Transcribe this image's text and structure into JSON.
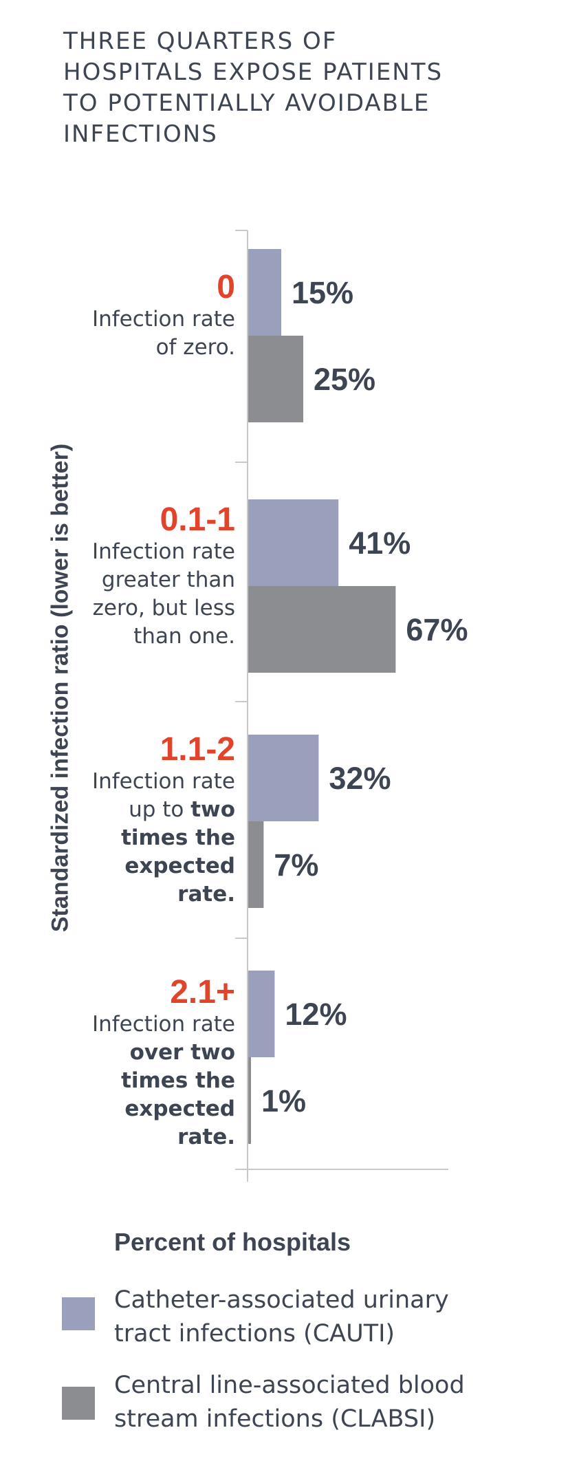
{
  "title": {
    "line1": "THREE QUARTERS OF",
    "line2": "HOSPITALS EXPOSE PATIENTS",
    "line3": "TO POTENTIALLY AVOIDABLE",
    "line4": "INFECTIONS"
  },
  "colors": {
    "cauti": "#9a9fbb",
    "clabsi": "#8c8d91",
    "category_value": "#e0452c",
    "text": "#3d4552",
    "axis": "#c9c9c9"
  },
  "categories": [
    {
      "value": "0",
      "desc_plain": "Infection rate",
      "desc_line2": "of zero.",
      "desc_bold": ""
    },
    {
      "value": "0.1-1",
      "desc_plain": "Infection rate",
      "desc_line2": "greater than",
      "desc_line3": "zero, but less",
      "desc_line4": "than one."
    },
    {
      "value": "1.1-2",
      "desc_plain": "Infection rate",
      "desc_prefix": "up to ",
      "desc_bold1": "two",
      "desc_bold2": "times the",
      "desc_bold3": "expected",
      "desc_bold4": "rate."
    },
    {
      "value": "2.1+",
      "desc_plain": "Infection rate",
      "desc_bold1": "over two",
      "desc_bold2": "times the",
      "desc_bold3": "expected",
      "desc_bold4": "rate."
    }
  ],
  "chart_data": {
    "type": "bar",
    "orientation": "horizontal",
    "title": "THREE QUARTERS OF HOSPITALS EXPOSE PATIENTS TO POTENTIALLY AVOIDABLE INFECTIONS",
    "ylabel": "Standardized infection ratio (lower is better)",
    "xlabel": "Percent of hospitals",
    "categories": [
      "0",
      "0.1-1",
      "1.1-2",
      "2.1+"
    ],
    "xlim": [
      0,
      100
    ],
    "series": [
      {
        "name": "Catheter-associated urinary tract infections (CAUTI)",
        "values": [
          15,
          41,
          32,
          12
        ],
        "labels": [
          "15%",
          "41%",
          "32%",
          "12%"
        ]
      },
      {
        "name": "Central line-associated blood stream infections (CLABSI)",
        "values": [
          25,
          67,
          7,
          1
        ],
        "labels": [
          "25%",
          "67%",
          "7%",
          "1%"
        ]
      }
    ]
  },
  "axis_title": "Standardized infection ratio (lower is better)",
  "legend": {
    "title": "Percent of hospitals",
    "cauti_line1": "Catheter-associated urinary",
    "cauti_line2": "tract infections (CAUTI)",
    "clabsi_line1": "Central line-associated blood",
    "clabsi_line2": "stream infections (CLABSI)"
  }
}
